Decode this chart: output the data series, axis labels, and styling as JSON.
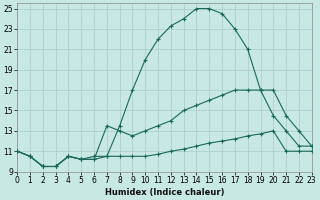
{
  "xlabel": "Humidex (Indice chaleur)",
  "bg_color": "#c8e8e4",
  "grid_color": "#a8ccc8",
  "line_color": "#1a6858",
  "xlim": [
    0,
    23
  ],
  "ylim": [
    9,
    25.5
  ],
  "xticks": [
    0,
    1,
    2,
    3,
    4,
    5,
    6,
    7,
    8,
    9,
    10,
    11,
    12,
    13,
    14,
    15,
    16,
    17,
    18,
    19,
    20,
    21,
    22,
    23
  ],
  "yticks": [
    9,
    11,
    13,
    15,
    17,
    19,
    21,
    23,
    25
  ],
  "curve1_x": [
    0,
    1,
    2,
    3,
    4,
    5,
    6,
    7,
    8,
    9,
    10,
    11,
    12,
    13,
    14,
    15,
    16,
    17,
    18,
    19,
    20,
    21,
    22,
    23
  ],
  "curve1_y": [
    11,
    10.5,
    9.5,
    9.5,
    10.5,
    10.2,
    10.5,
    10.5,
    13.5,
    17,
    20,
    22,
    23.3,
    24.0,
    25.0,
    25.0,
    24.5,
    23.0,
    21.0,
    17.0,
    14.5,
    13.0,
    11.5,
    11.5
  ],
  "curve2_x": [
    0,
    1,
    2,
    3,
    4,
    5,
    6,
    7,
    8,
    9,
    10,
    11,
    12,
    13,
    14,
    15,
    16,
    17,
    18,
    19,
    20,
    21,
    22,
    23
  ],
  "curve2_y": [
    11,
    10.5,
    9.5,
    9.5,
    10.5,
    10.2,
    10.2,
    13.5,
    13.0,
    12.5,
    13.0,
    13.5,
    14.0,
    15.0,
    15.5,
    16.0,
    16.5,
    17.0,
    17.0,
    17.0,
    17.0,
    14.5,
    13.0,
    11.5
  ],
  "curve3_x": [
    0,
    1,
    2,
    3,
    4,
    5,
    6,
    7,
    8,
    9,
    10,
    11,
    12,
    13,
    14,
    15,
    16,
    17,
    18,
    19,
    20,
    21,
    22,
    23
  ],
  "curve3_y": [
    11,
    10.5,
    9.5,
    9.5,
    10.5,
    10.2,
    10.2,
    10.5,
    10.5,
    10.5,
    10.5,
    10.7,
    11.0,
    11.2,
    11.5,
    11.8,
    12.0,
    12.2,
    12.5,
    12.7,
    13.0,
    11.0,
    11.0,
    11.0
  ]
}
